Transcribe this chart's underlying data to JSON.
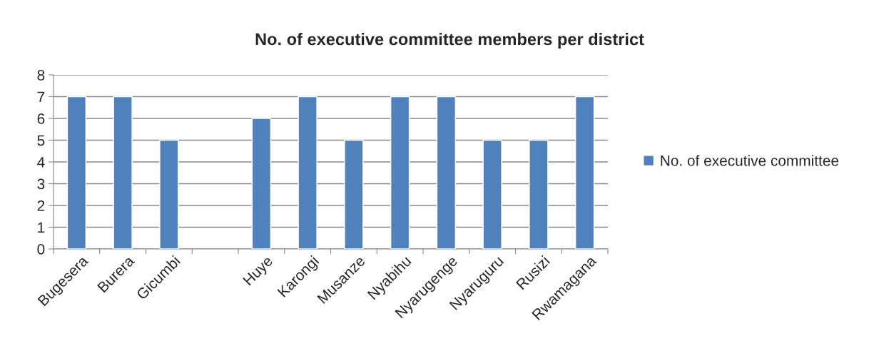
{
  "chart_data": {
    "type": "bar",
    "title": "No. of executive committee members per district",
    "categories": [
      "Bugesera",
      "Burera",
      "Gicumbi",
      null,
      "Huye",
      "Karongi",
      "Musanze",
      "Nyabihu",
      "Nyarugenge",
      "Nyaruguru",
      "Rusizi",
      "Rwamagana"
    ],
    "series": [
      {
        "name": "No. of executive committee",
        "color": "#4f81bd",
        "values": [
          7,
          7,
          5,
          null,
          6,
          7,
          5,
          7,
          7,
          5,
          5,
          7
        ]
      }
    ],
    "ylim": [
      0,
      8
    ],
    "yticks": [
      0,
      1,
      2,
      3,
      4,
      5,
      6,
      7,
      8
    ],
    "grid": "y",
    "legend": "right"
  }
}
